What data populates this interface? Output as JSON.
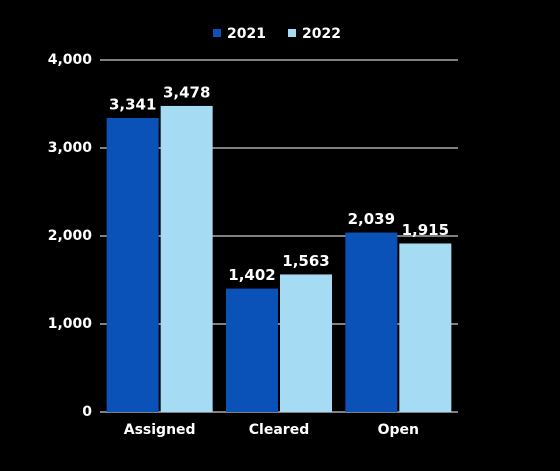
{
  "chart_data": {
    "type": "bar",
    "categories": [
      "Assigned",
      "Cleared",
      "Open"
    ],
    "series": [
      {
        "name": "2021",
        "color": "#0b52b8",
        "values": [
          3341,
          1402,
          2039
        ],
        "value_labels": [
          "3,341",
          "1,402",
          "2,039"
        ]
      },
      {
        "name": "2022",
        "color": "#a6dcf3",
        "values": [
          3478,
          1563,
          1915
        ],
        "value_labels": [
          "3,478",
          "1,563",
          "1,915"
        ]
      }
    ],
    "ylim": [
      0,
      4000
    ],
    "yticks": [
      0,
      {
        "value": 1000,
        "label": "1,000"
      },
      {
        "value": 2000,
        "label": "2,000"
      },
      {
        "value": 3000,
        "label": "3,000"
      },
      {
        "value": 4000,
        "label": "4,000"
      }
    ],
    "grid": true,
    "legend": "top"
  }
}
